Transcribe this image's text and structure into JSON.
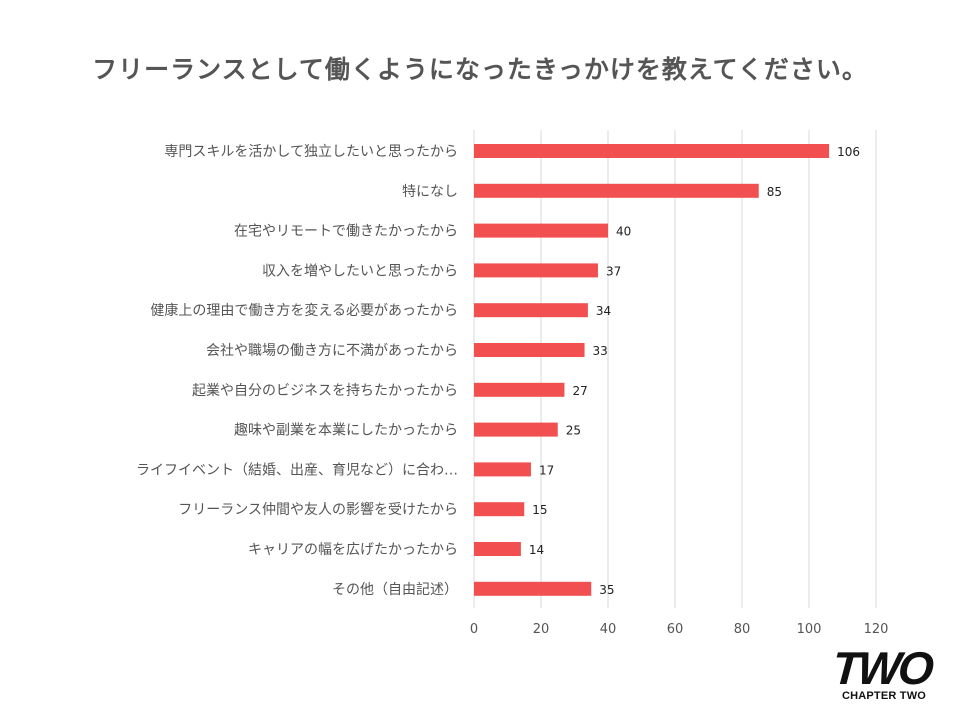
{
  "chart_data": {
    "type": "bar",
    "orientation": "horizontal",
    "title": "フリーランスとして働くようになったきっかけを教えてください。",
    "categories": [
      "専門スキルを活かして独立したいと思ったから",
      "特になし",
      "在宅やリモートで働きたかったから",
      "収入を増やしたいと思ったから",
      "健康上の理由で働き方を変える必要があったから",
      "会社や職場の働き方に不満があったから",
      "起業や自分のビジネスを持ちたかったから",
      "趣味や副業を本業にしたかったから",
      "ライフイベント（結婚、出産、育児など）に合わ…",
      "フリーランス仲間や友人の影響を受けたから",
      "キャリアの幅を広げたかったから",
      "その他（自由記述）"
    ],
    "values": [
      106,
      85,
      40,
      37,
      34,
      33,
      27,
      25,
      17,
      15,
      14,
      35
    ],
    "xlim": [
      0,
      120
    ],
    "xticks": [
      0,
      20,
      40,
      60,
      80,
      100,
      120
    ],
    "grid": true,
    "bar_color": "#f25050",
    "grid_color": "#d9d9d9",
    "xlabel": "",
    "ylabel": ""
  },
  "logo": {
    "mark": "TWO",
    "subtitle": "CHAPTER TWO"
  }
}
